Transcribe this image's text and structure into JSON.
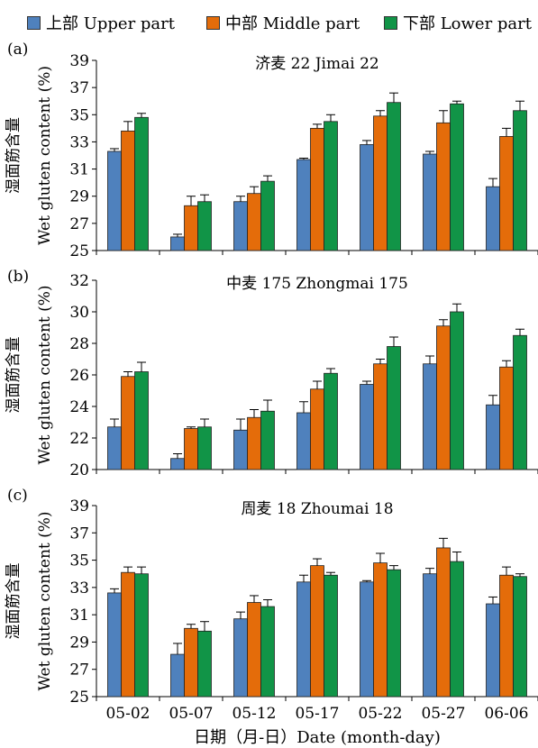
{
  "legend": [
    {
      "label": "上部 Upper part",
      "color": "#4F81BD"
    },
    {
      "label": "中部 Middle part",
      "color": "#E46C0A"
    },
    {
      "label": "下部 Lower part",
      "color": "#119447"
    }
  ],
  "ylabel_cn": "湿面筋含量",
  "ylabel_en": "Wet gluten content (%)",
  "xlabel": "日期（月-日）Date (month-day)",
  "chart_data": [
    {
      "type": "bar",
      "panel": "(a)",
      "title": "济麦 22 Jimai 22",
      "categories": [
        "05-02",
        "05-07",
        "05-12",
        "05-17",
        "05-22",
        "05-27",
        "06-06"
      ],
      "ylim": [
        25,
        39
      ],
      "yticks": [
        25,
        27,
        29,
        31,
        33,
        35,
        37,
        39
      ],
      "series": [
        {
          "name": "上部 Upper part",
          "values": [
            32.3,
            26.0,
            28.6,
            31.7,
            32.8,
            32.1,
            29.7
          ],
          "errors": [
            0.2,
            0.2,
            0.4,
            0.1,
            0.3,
            0.2,
            0.6
          ]
        },
        {
          "name": "中部 Middle part",
          "values": [
            33.8,
            28.3,
            29.2,
            34.0,
            34.9,
            34.4,
            33.4
          ],
          "errors": [
            0.7,
            0.7,
            0.5,
            0.3,
            0.4,
            0.9,
            0.6
          ]
        },
        {
          "name": "下部 Lower part",
          "values": [
            34.8,
            28.6,
            30.1,
            34.5,
            35.9,
            35.8,
            35.3
          ],
          "errors": [
            0.3,
            0.5,
            0.4,
            0.5,
            0.7,
            0.2,
            0.7
          ]
        }
      ]
    },
    {
      "type": "bar",
      "panel": "(b)",
      "title": "中麦 175 Zhongmai 175",
      "categories": [
        "05-02",
        "05-07",
        "05-12",
        "05-17",
        "05-22",
        "05-27",
        "06-06"
      ],
      "ylim": [
        20,
        32
      ],
      "yticks": [
        20,
        22,
        24,
        26,
        28,
        30,
        32
      ],
      "series": [
        {
          "name": "上部 Upper part",
          "values": [
            22.7,
            20.7,
            22.5,
            23.6,
            25.4,
            26.7,
            24.1
          ],
          "errors": [
            0.5,
            0.3,
            0.7,
            0.7,
            0.2,
            0.5,
            0.6
          ]
        },
        {
          "name": "中部 Middle part",
          "values": [
            25.9,
            22.6,
            23.3,
            25.1,
            26.7,
            29.1,
            26.5
          ],
          "errors": [
            0.3,
            0.1,
            0.5,
            0.5,
            0.3,
            0.4,
            0.4
          ]
        },
        {
          "name": "下部 Lower part",
          "values": [
            26.2,
            22.7,
            23.7,
            26.1,
            27.8,
            30.0,
            28.5
          ],
          "errors": [
            0.6,
            0.5,
            0.7,
            0.3,
            0.6,
            0.5,
            0.4
          ]
        }
      ]
    },
    {
      "type": "bar",
      "panel": "(c)",
      "title": "周麦 18 Zhoumai 18",
      "categories": [
        "05-02",
        "05-07",
        "05-12",
        "05-17",
        "05-22",
        "05-27",
        "06-06"
      ],
      "ylim": [
        25,
        39
      ],
      "yticks": [
        25,
        27,
        29,
        31,
        33,
        35,
        37,
        39
      ],
      "series": [
        {
          "name": "上部 Upper part",
          "values": [
            32.6,
            28.1,
            30.7,
            33.4,
            33.4,
            34.0,
            31.8
          ],
          "errors": [
            0.3,
            0.8,
            0.5,
            0.5,
            0.1,
            0.4,
            0.5
          ]
        },
        {
          "name": "中部 Middle part",
          "values": [
            34.1,
            30.0,
            31.9,
            34.6,
            34.8,
            35.9,
            33.9
          ],
          "errors": [
            0.4,
            0.3,
            0.5,
            0.5,
            0.7,
            0.7,
            0.6
          ]
        },
        {
          "name": "下部 Lower part",
          "values": [
            34.0,
            29.8,
            31.6,
            33.9,
            34.3,
            34.9,
            33.8
          ],
          "errors": [
            0.5,
            0.7,
            0.5,
            0.2,
            0.3,
            0.7,
            0.2
          ]
        }
      ]
    }
  ]
}
